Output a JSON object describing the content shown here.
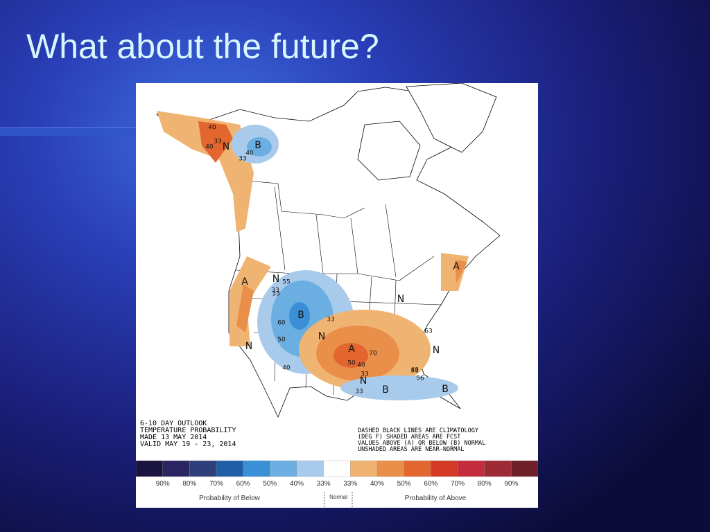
{
  "title": "What about the future?",
  "map": {
    "info_left": [
      "6-10 DAY OUTLOOK",
      "TEMPERATURE PROBABILITY",
      "MADE   13 MAY 2014",
      "VALID   MAY 19 - 23, 2014"
    ],
    "info_right": [
      "DASHED BLACK LINES ARE CLIMATOLOGY",
      "(DEG F) SHADED AREAS ARE FCST",
      "VALUES ABOVE (A) OR BELOW (B) NORMAL",
      "UNSHADED AREAS ARE NEAR-NORMAL"
    ],
    "labels": [
      "N",
      "B",
      "A",
      "A",
      "N",
      "B",
      "N",
      "N",
      "A",
      "N",
      "N",
      "B",
      "B",
      "N",
      "40",
      "33",
      "40",
      "33",
      "40",
      "33",
      "55",
      "33",
      "60",
      "50",
      "40",
      "33",
      "70",
      "50",
      "40",
      "33",
      "33",
      "40",
      "56",
      "63",
      "33"
    ]
  },
  "legend": {
    "colors": [
      "#1a1440",
      "#2a2560",
      "#2d3f7a",
      "#1f5fa5",
      "#3a8fd6",
      "#6aaee2",
      "#a8cbeb",
      "#ffffff",
      "#f0b472",
      "#ea8f4a",
      "#e2662e",
      "#d23a26",
      "#c42b3c",
      "#9e2a35",
      "#6e2026"
    ],
    "ticks": [
      "90%",
      "80%",
      "70%",
      "60%",
      "50%",
      "40%",
      "33%",
      "33%",
      "40%",
      "50%",
      "60%",
      "70%",
      "80%",
      "90%"
    ],
    "below_title": "Probability of Below",
    "normal": "Normal",
    "above_title": "Probability of Above"
  }
}
